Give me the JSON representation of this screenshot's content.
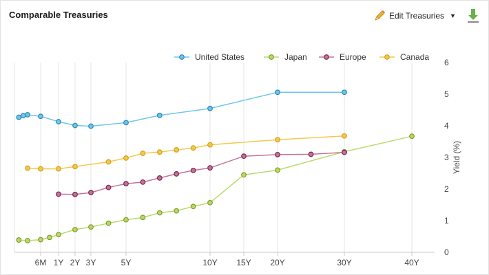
{
  "header": {
    "title": "Comparable Treasuries",
    "edit_label": "Edit Treasuries",
    "pencil_icon": "pencil-icon",
    "caret_icon": "caret-down-icon",
    "download_icon": "download-icon"
  },
  "chart_data": {
    "type": "line",
    "xlabel": "",
    "ylabel": "Yield (%)",
    "ylim": [
      0,
      6
    ],
    "yticks": [
      0,
      1,
      2,
      3,
      4,
      5,
      6
    ],
    "x_ticks": [
      {
        "label": "6M",
        "t": 0.5
      },
      {
        "label": "1Y",
        "t": 1
      },
      {
        "label": "2Y",
        "t": 2
      },
      {
        "label": "3Y",
        "t": 3
      },
      {
        "label": "5Y",
        "t": 5
      },
      {
        "label": "10Y",
        "t": 10
      },
      {
        "label": "15Y",
        "t": 15
      },
      {
        "label": "20Y",
        "t": 20
      },
      {
        "label": "30Y",
        "t": 30
      },
      {
        "label": "40Y",
        "t": 40
      }
    ],
    "grid": "vertical",
    "legend_position": "top-right",
    "series": [
      {
        "name": "United States",
        "color": "#6ec6ea",
        "marker": "#2a87b8",
        "points": [
          [
            0.083,
            4.27
          ],
          [
            0.167,
            4.32
          ],
          [
            0.25,
            4.35
          ],
          [
            0.5,
            4.3
          ],
          [
            1,
            4.13
          ],
          [
            2,
            4.01
          ],
          [
            3,
            3.99
          ],
          [
            5,
            4.1
          ],
          [
            7,
            4.33
          ],
          [
            10,
            4.55
          ],
          [
            20,
            5.06
          ],
          [
            30,
            5.06
          ]
        ]
      },
      {
        "name": "Japan",
        "color": "#b8d96a",
        "marker": "#7f9e22",
        "points": [
          [
            0.083,
            0.39
          ],
          [
            0.25,
            0.37
          ],
          [
            0.5,
            0.4
          ],
          [
            0.75,
            0.47
          ],
          [
            1,
            0.56
          ],
          [
            2,
            0.72
          ],
          [
            3,
            0.8
          ],
          [
            4,
            0.92
          ],
          [
            5,
            1.03
          ],
          [
            6,
            1.1
          ],
          [
            7,
            1.25
          ],
          [
            8,
            1.31
          ],
          [
            9,
            1.45
          ],
          [
            10,
            1.57
          ],
          [
            15,
            2.45
          ],
          [
            20,
            2.6
          ],
          [
            30,
            3.18
          ],
          [
            40,
            3.67
          ]
        ]
      },
      {
        "name": "Europe",
        "color": "#c27497",
        "marker": "#7a2450",
        "points": [
          [
            1,
            1.84
          ],
          [
            2,
            1.83
          ],
          [
            3,
            1.89
          ],
          [
            4,
            2.05
          ],
          [
            5,
            2.17
          ],
          [
            6,
            2.22
          ],
          [
            7,
            2.35
          ],
          [
            8,
            2.48
          ],
          [
            9,
            2.59
          ],
          [
            10,
            2.67
          ],
          [
            15,
            3.04
          ],
          [
            20,
            3.09
          ],
          [
            25,
            3.1
          ],
          [
            30,
            3.16
          ]
        ]
      },
      {
        "name": "Canada",
        "color": "#f2c94c",
        "marker": "#d4a017",
        "points": [
          [
            0.25,
            2.66
          ],
          [
            0.5,
            2.64
          ],
          [
            1,
            2.64
          ],
          [
            2,
            2.71
          ],
          [
            4,
            2.86
          ],
          [
            5,
            2.98
          ],
          [
            6,
            3.13
          ],
          [
            7,
            3.17
          ],
          [
            8,
            3.24
          ],
          [
            9,
            3.3
          ],
          [
            10,
            3.4
          ],
          [
            20,
            3.56
          ],
          [
            30,
            3.68
          ]
        ]
      }
    ]
  }
}
